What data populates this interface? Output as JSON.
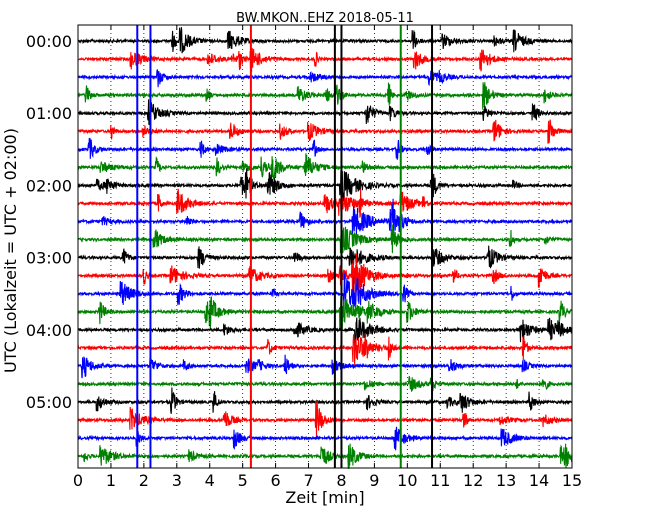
{
  "chart_data": {
    "type": "line",
    "title": "BW.MKON..EHZ 2018-05-11",
    "xlabel": "Zeit  [min]",
    "ylabel": "UTC (Lokalzeit = UTC + 02:00)",
    "xlim": [
      0,
      15
    ],
    "x_ticks": [
      0,
      1,
      2,
      3,
      4,
      5,
      6,
      7,
      8,
      9,
      10,
      11,
      12,
      13,
      14,
      15
    ],
    "x_tick_labels": [
      "0",
      "1",
      "2",
      "3",
      "4",
      "5",
      "6",
      "7",
      "8",
      "9",
      "10",
      "11",
      "12",
      "13",
      "14",
      "15"
    ],
    "y_tick_labels": [
      "00:00",
      "01:00",
      "02:00",
      "03:00",
      "04:00",
      "05:00"
    ],
    "rows_per_hour": 4,
    "row_minutes": 15,
    "row_count": 24,
    "row_start_times": [
      "00:00",
      "00:15",
      "00:30",
      "00:45",
      "01:00",
      "01:15",
      "01:30",
      "01:45",
      "02:00",
      "02:15",
      "02:30",
      "02:45",
      "03:00",
      "03:15",
      "03:30",
      "03:45",
      "04:00",
      "04:15",
      "04:30",
      "04:45",
      "05:00",
      "05:15",
      "05:30",
      "05:45"
    ],
    "color_cycle": [
      "#000000",
      "#ff0000",
      "#0000ff",
      "#008000"
    ],
    "vertical_grid": "dotted",
    "events": [
      {
        "minute": 7.8,
        "color": "#000000",
        "type": "vertical_trace"
      },
      {
        "minute": 8.0,
        "color": "#000000",
        "type": "vertical_trace"
      },
      {
        "minute": 10.75,
        "color": "#000000",
        "type": "vertical_trace"
      },
      {
        "minute": 1.8,
        "color": "#0000ff",
        "type": "vertical_trace"
      },
      {
        "minute": 2.2,
        "color": "#0000ff",
        "type": "vertical_trace"
      },
      {
        "minute": 5.25,
        "color": "#ff0000",
        "type": "vertical_trace"
      },
      {
        "minute": 9.8,
        "color": "#008000",
        "type": "vertical_trace"
      }
    ]
  }
}
